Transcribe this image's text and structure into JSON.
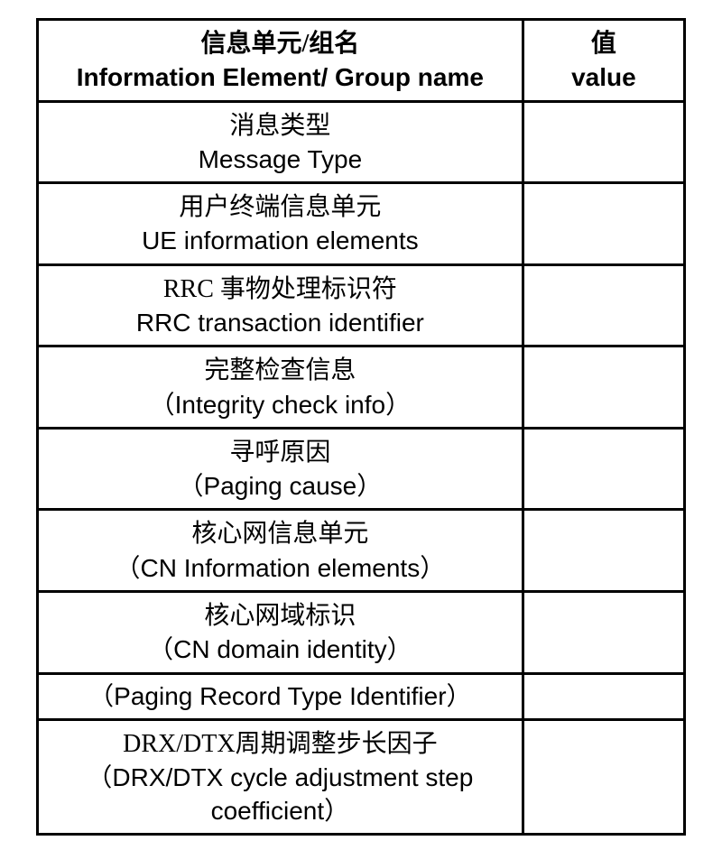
{
  "table": {
    "header": {
      "name_cn": "信息单元/组名",
      "name_en": "Information Element/ Group name",
      "value_cn": "值",
      "value_en": "value"
    },
    "rows": [
      {
        "cn": "消息类型",
        "en": "Message Type",
        "value": ""
      },
      {
        "cn": "用户终端信息单元",
        "en": "UE information elements",
        "value": ""
      },
      {
        "cn": "RRC 事物处理标识符",
        "en": "RRC transaction identifier",
        "value": ""
      },
      {
        "cn": "完整检查信息",
        "en": "（Integrity check info）",
        "value": ""
      },
      {
        "cn": "寻呼原因",
        "en": "（Paging cause）",
        "value": ""
      },
      {
        "cn": "核心网信息单元",
        "en": "（CN Information elements）",
        "value": ""
      },
      {
        "cn": "核心网域标识",
        "en": "（CN domain identity）",
        "value": ""
      },
      {
        "cn": "",
        "en": "（Paging Record Type Identifier）",
        "value": ""
      },
      {
        "cn": "DRX/DTX周期调整步长因子",
        "en": "（DRX/DTX cycle adjustment step coefficient）",
        "value": ""
      }
    ],
    "border_color": "#000000",
    "background_color": "#ffffff",
    "text_color": "#000000",
    "font_size_cn": 28,
    "font_size_en": 28,
    "border_width": 3
  }
}
